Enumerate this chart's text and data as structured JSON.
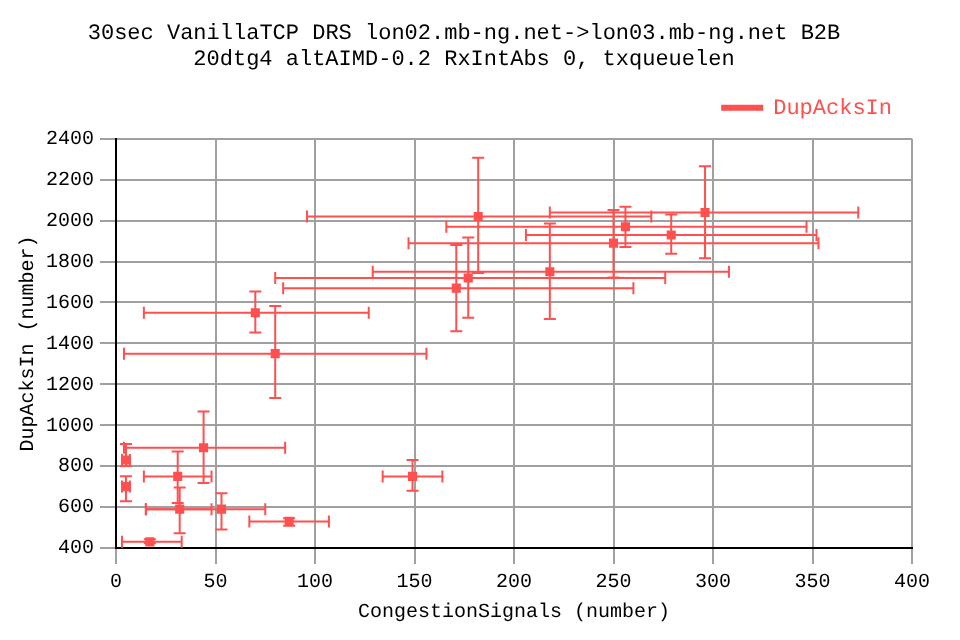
{
  "chart_data": {
    "type": "scatter",
    "title": "30sec VanillaTCP DRS lon02.mb-ng.net->lon03.mb-ng.net B2B",
    "subtitle": "20dtg4 altAIMD-0.2 RxIntAbs 0, txqueuelen",
    "xlabel": "CongestionSignals (number)",
    "ylabel": "DupAcksIn (number)",
    "x": [
      182,
      296,
      256,
      279,
      250,
      218,
      177,
      171,
      70,
      80,
      44,
      5,
      31,
      5,
      149,
      32,
      53,
      87,
      17
    ],
    "series": [
      {
        "name": "DupAcksIn",
        "color": "#ff5050",
        "values": [
          2020,
          2040,
          1970,
          1930,
          1890,
          1750,
          1720,
          1670,
          1550,
          1350,
          890,
          830,
          750,
          700,
          750,
          590,
          590,
          530,
          430
        ],
        "errors": [
          [
            1744,
            2307
          ],
          [
            1816,
            2266
          ],
          [
            1871,
            2068
          ],
          [
            1838,
            2030
          ],
          [
            1722,
            2052
          ],
          [
            1519,
            1986
          ],
          [
            1525,
            1917
          ],
          [
            1459,
            1881
          ],
          [
            1453,
            1654
          ],
          [
            1133,
            1583
          ],
          [
            718,
            1067
          ],
          [
            801,
            908
          ],
          [
            620,
            872
          ],
          [
            628,
            751
          ],
          [
            680,
            830
          ],
          [
            472,
            696
          ],
          [
            490,
            668
          ],
          [
            509,
            545
          ],
          [
            423,
            443
          ]
        ],
        "xerrors": [
          [
            96,
            269
          ],
          [
            218,
            373
          ],
          [
            166,
            347
          ],
          [
            206,
            352
          ],
          [
            147,
            353
          ],
          [
            129,
            308
          ],
          [
            80,
            276
          ],
          [
            84,
            260
          ],
          [
            14,
            127
          ],
          [
            4,
            156
          ],
          [
            4,
            85
          ],
          [
            3,
            7
          ],
          [
            14,
            48
          ],
          [
            3,
            7
          ],
          [
            134,
            164
          ],
          [
            15,
            48
          ],
          [
            15,
            75
          ],
          [
            67,
            107
          ],
          [
            3,
            33
          ]
        ]
      }
    ],
    "xlim": [
      0,
      400
    ],
    "xticks": [
      0,
      50,
      100,
      150,
      200,
      250,
      300,
      350,
      400
    ],
    "ylim": [
      400,
      2400
    ],
    "yticks": [
      400,
      600,
      800,
      1000,
      1200,
      1400,
      1600,
      1800,
      2000,
      2200,
      2400
    ],
    "grid": true,
    "legend": "top right",
    "marker": "square"
  }
}
